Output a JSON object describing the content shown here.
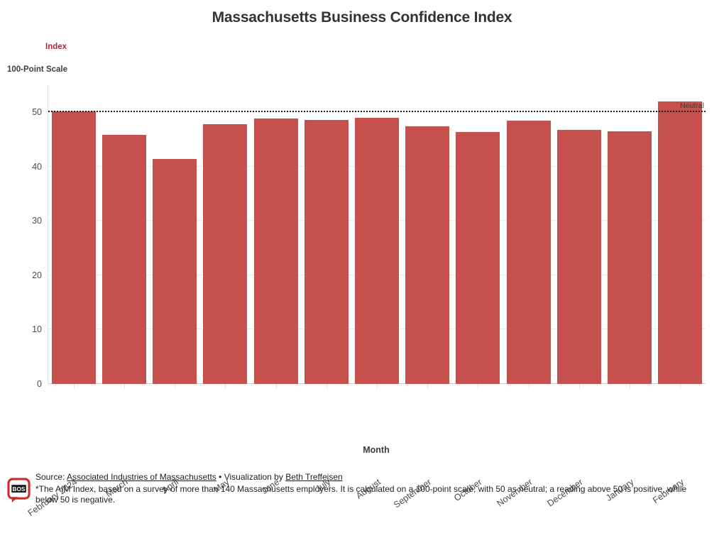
{
  "header": {
    "title": "Massachusetts Business Confidence Index"
  },
  "legend": {
    "items": [
      {
        "label": "Index",
        "color": "#b5272c"
      }
    ]
  },
  "chart_data": {
    "type": "bar",
    "title": "Massachusetts Business Confidence Index",
    "xlabel": "Month",
    "ylabel": "100-Point Scale",
    "categories": [
      "February 2024",
      "March",
      "April",
      "May",
      "June",
      "July",
      "August",
      "September",
      "October",
      "November",
      "December",
      "January",
      "February"
    ],
    "series": [
      {
        "name": "Index",
        "values": [
          50.2,
          45.9,
          41.4,
          47.8,
          48.9,
          48.6,
          49.0,
          47.4,
          46.4,
          48.5,
          46.8,
          46.5,
          52.0
        ]
      }
    ],
    "ylim": [
      0,
      55
    ],
    "yticks": [
      0,
      10,
      20,
      30,
      40,
      50
    ],
    "grid": true,
    "legend_position": "top-left",
    "bar_color": "#c5504c",
    "reference_line": {
      "value": 50,
      "label": "Neutral",
      "style": "dotted"
    }
  },
  "axis": {
    "y_title": "100-Point Scale",
    "x_title": "Month"
  },
  "footer": {
    "logo_text": "BOS",
    "source_prefix": "Source: ",
    "source_link": "Associated Industries of Massachusetts",
    "separator": " • ",
    "viz_prefix": "Visualization by ",
    "viz_link": "Beth Treffeisen",
    "footnote": "*The AIM Index, based on a survey of more than 140 Massachusetts employers. It is calculated on a 100-point scale, with 50 as neutral; a reading above 50 is positive, while below 50 is negative."
  }
}
